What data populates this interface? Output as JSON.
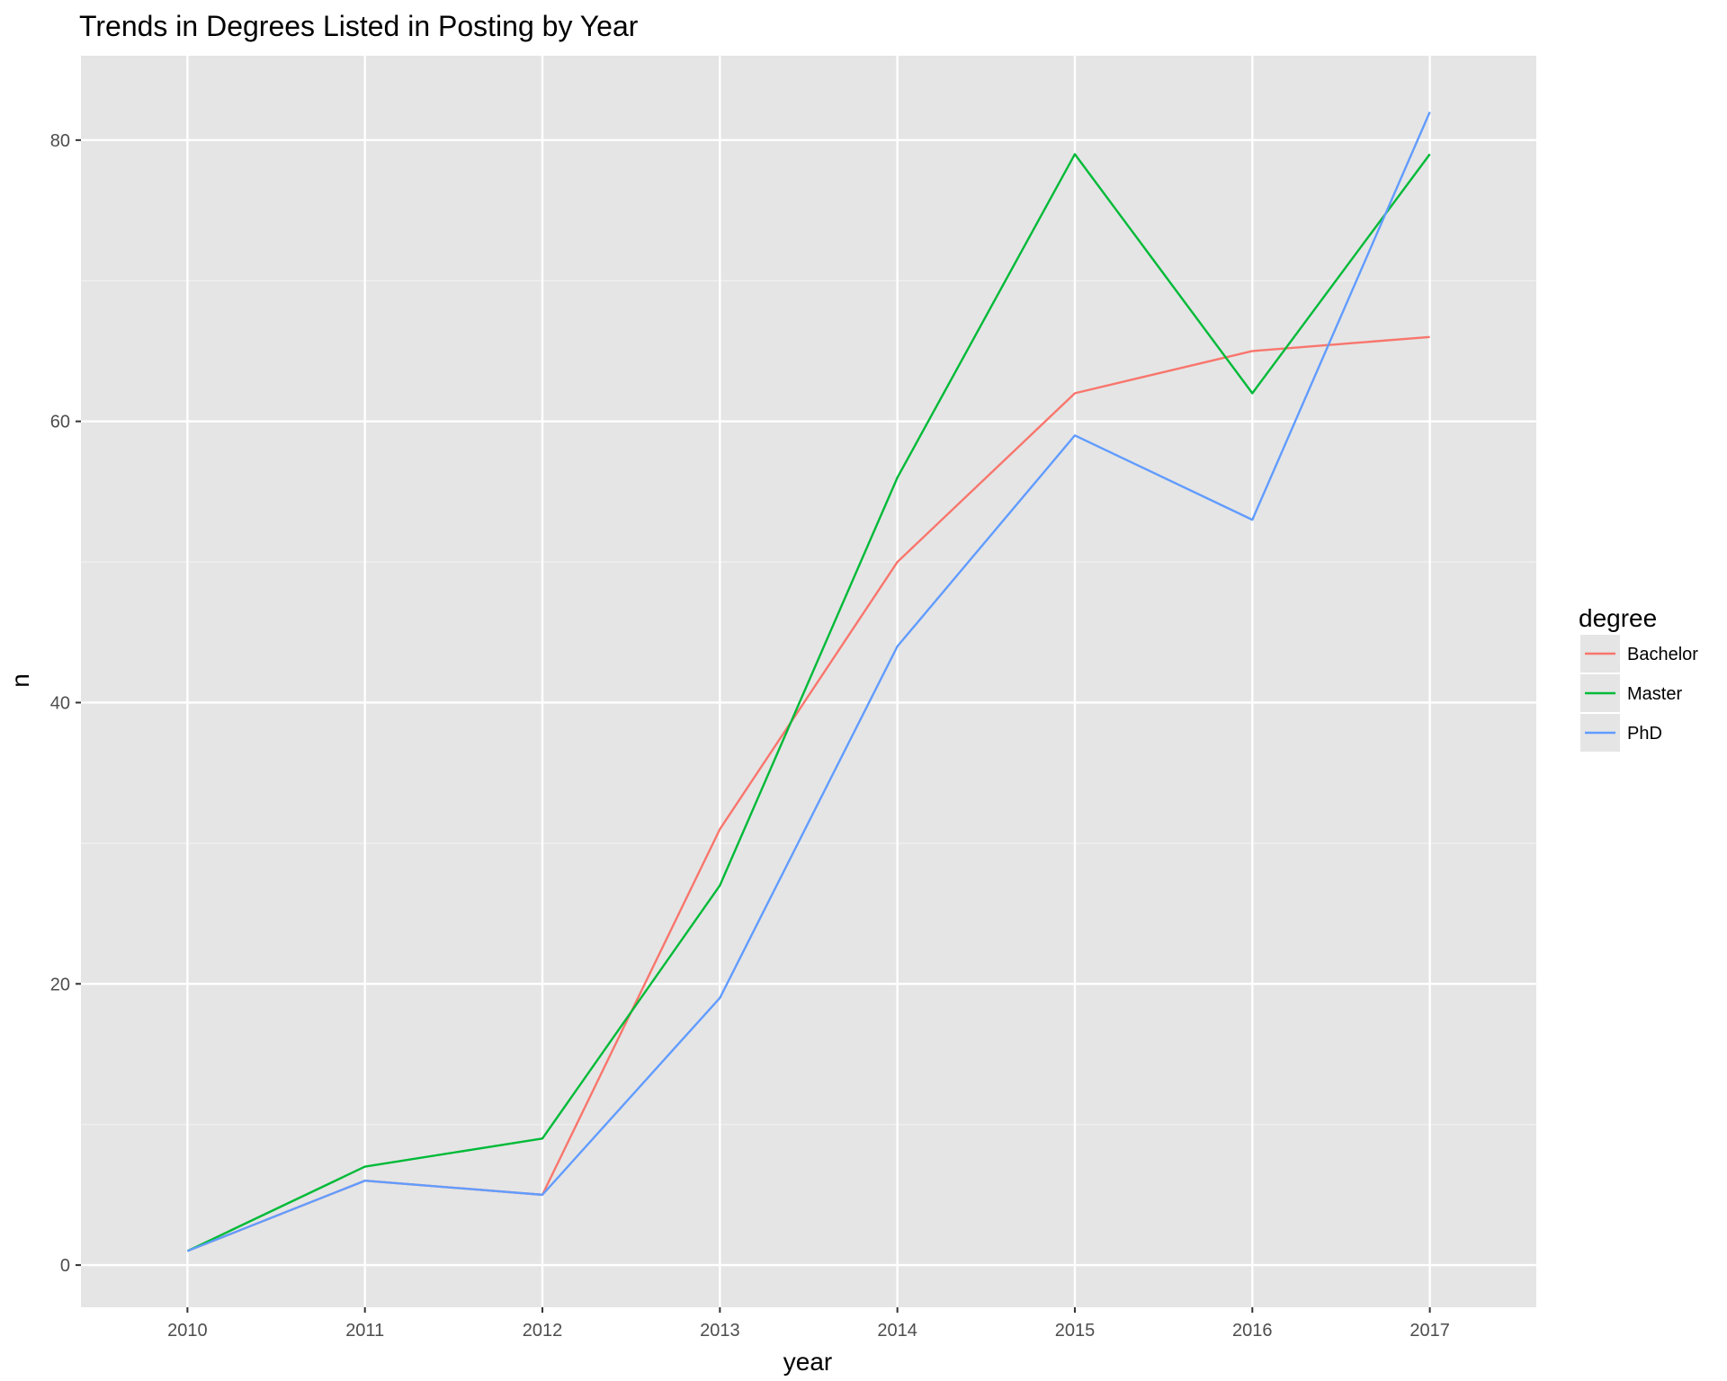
{
  "chart_data": {
    "type": "line",
    "title": "Trends in Degrees Listed in Posting by Year",
    "xlabel": "year",
    "ylabel": "n",
    "x": [
      2010,
      2011,
      2012,
      2013,
      2014,
      2015,
      2016,
      2017
    ],
    "x_tick_labels": [
      "2010",
      "2011",
      "2012",
      "2013",
      "2014",
      "2015",
      "2016",
      "2017"
    ],
    "y_ticks": [
      0,
      20,
      40,
      60,
      80
    ],
    "y_tick_labels": [
      "0",
      "20",
      "40",
      "60",
      "80"
    ],
    "xlim": [
      2009.4,
      2017.6
    ],
    "ylim": [
      -3,
      86
    ],
    "grid": true,
    "legend": {
      "title": "degree",
      "position": "right"
    },
    "series": [
      {
        "name": "Bachelor",
        "color": "#F8766D",
        "values": [
          1,
          6,
          5,
          31,
          50,
          62,
          65,
          66
        ]
      },
      {
        "name": "Master",
        "color": "#00BA38",
        "values": [
          1,
          7,
          9,
          27,
          56,
          79,
          62,
          79
        ]
      },
      {
        "name": "PhD",
        "color": "#619CFF",
        "values": [
          1,
          6,
          5,
          19,
          44,
          59,
          53,
          82
        ]
      }
    ]
  },
  "colors": {
    "panel_background": "#E5E5E5",
    "grid_major": "#FFFFFF",
    "grid_minor": "#F2F2F2",
    "tick_text": "#4D4D4D"
  }
}
